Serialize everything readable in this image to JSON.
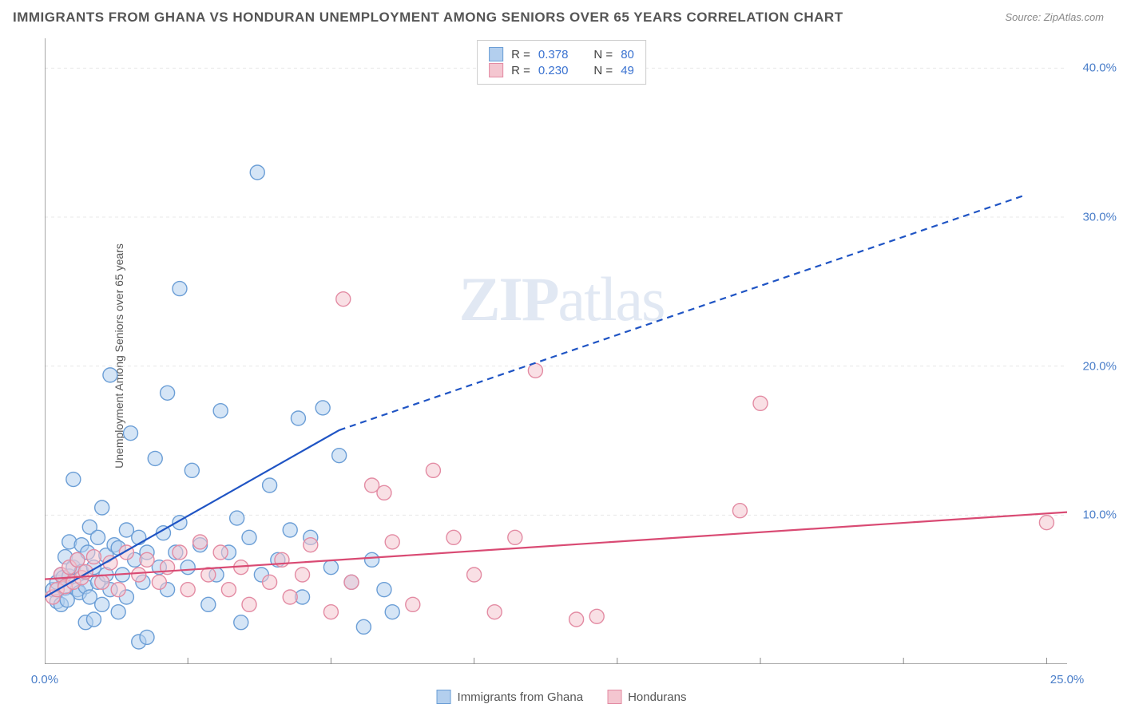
{
  "title": "IMMIGRANTS FROM GHANA VS HONDURAN UNEMPLOYMENT AMONG SENIORS OVER 65 YEARS CORRELATION CHART",
  "source": "Source: ZipAtlas.com",
  "y_axis_label": "Unemployment Among Seniors over 65 years",
  "watermark_bold": "ZIP",
  "watermark_light": "atlas",
  "chart": {
    "type": "scatter",
    "xlim": [
      0,
      25
    ],
    "ylim": [
      0,
      42
    ],
    "x_ticks": [
      {
        "v": 0,
        "label": "0.0%"
      },
      {
        "v": 25,
        "label": "25.0%"
      }
    ],
    "y_ticks": [
      {
        "v": 10,
        "label": "10.0%"
      },
      {
        "v": 20,
        "label": "20.0%"
      },
      {
        "v": 30,
        "label": "30.0%"
      },
      {
        "v": 40,
        "label": "40.0%"
      }
    ],
    "grid_y": [
      10,
      20,
      30,
      40
    ],
    "grid_x": [
      3.5,
      7,
      10.5,
      14,
      17.5,
      21,
      24.5
    ],
    "grid_color": "#e8e8e8",
    "axis_color": "#888888",
    "background": "#ffffff",
    "marker_radius": 9,
    "marker_stroke_width": 1.4,
    "series": [
      {
        "name": "Immigrants from Ghana",
        "fill": "#b3cfee",
        "stroke": "#6b9ed6",
        "fill_opacity": 0.55,
        "R": "0.378",
        "N": "80",
        "trend": {
          "x1": 0,
          "y1": 4.5,
          "x2": 7.2,
          "y2": 15.7,
          "color": "#1f54c4",
          "width": 2.2,
          "dash_from_x": 7.2,
          "dash_to": {
            "x": 24,
            "y": 31.5
          }
        },
        "points": [
          [
            0.2,
            5.0
          ],
          [
            0.3,
            4.2
          ],
          [
            0.3,
            5.5
          ],
          [
            0.4,
            6.0
          ],
          [
            0.4,
            4.0
          ],
          [
            0.45,
            5.8
          ],
          [
            0.5,
            5.1
          ],
          [
            0.5,
            7.2
          ],
          [
            0.55,
            4.3
          ],
          [
            0.6,
            8.2
          ],
          [
            0.6,
            5.9
          ],
          [
            0.7,
            6.5
          ],
          [
            0.7,
            12.4
          ],
          [
            0.8,
            5.0
          ],
          [
            0.8,
            7.0
          ],
          [
            0.85,
            4.8
          ],
          [
            0.9,
            6.2
          ],
          [
            0.9,
            8.0
          ],
          [
            1.0,
            5.2
          ],
          [
            1.0,
            2.8
          ],
          [
            1.05,
            7.5
          ],
          [
            1.1,
            9.2
          ],
          [
            1.1,
            4.5
          ],
          [
            1.2,
            3.0
          ],
          [
            1.2,
            6.5
          ],
          [
            1.3,
            8.5
          ],
          [
            1.3,
            5.5
          ],
          [
            1.4,
            10.5
          ],
          [
            1.4,
            4.0
          ],
          [
            1.5,
            7.3
          ],
          [
            1.5,
            6.0
          ],
          [
            1.6,
            19.4
          ],
          [
            1.6,
            5.0
          ],
          [
            1.7,
            8.0
          ],
          [
            1.8,
            3.5
          ],
          [
            1.8,
            7.8
          ],
          [
            1.9,
            6.0
          ],
          [
            2.0,
            9.0
          ],
          [
            2.0,
            4.5
          ],
          [
            2.1,
            15.5
          ],
          [
            2.2,
            7.0
          ],
          [
            2.3,
            1.5
          ],
          [
            2.3,
            8.5
          ],
          [
            2.4,
            5.5
          ],
          [
            2.5,
            1.8
          ],
          [
            2.5,
            7.5
          ],
          [
            2.7,
            13.8
          ],
          [
            2.8,
            6.5
          ],
          [
            2.9,
            8.8
          ],
          [
            3.0,
            5.0
          ],
          [
            3.0,
            18.2
          ],
          [
            3.2,
            7.5
          ],
          [
            3.3,
            25.2
          ],
          [
            3.3,
            9.5
          ],
          [
            3.5,
            6.5
          ],
          [
            3.6,
            13.0
          ],
          [
            3.8,
            8.0
          ],
          [
            4.2,
            6.0
          ],
          [
            4.3,
            17.0
          ],
          [
            4.5,
            7.5
          ],
          [
            4.7,
            9.8
          ],
          [
            4.8,
            2.8
          ],
          [
            5.0,
            8.5
          ],
          [
            5.2,
            33.0
          ],
          [
            5.3,
            6.0
          ],
          [
            5.5,
            12.0
          ],
          [
            5.7,
            7.0
          ],
          [
            6.0,
            9.0
          ],
          [
            6.2,
            16.5
          ],
          [
            6.3,
            4.5
          ],
          [
            6.5,
            8.5
          ],
          [
            6.8,
            17.2
          ],
          [
            7.0,
            6.5
          ],
          [
            7.2,
            14.0
          ],
          [
            7.5,
            5.5
          ],
          [
            7.8,
            2.5
          ],
          [
            8.0,
            7.0
          ],
          [
            8.3,
            5.0
          ],
          [
            8.5,
            3.5
          ],
          [
            4.0,
            4.0
          ]
        ]
      },
      {
        "name": "Hondurans",
        "fill": "#f4c6d0",
        "stroke": "#e38ba3",
        "fill_opacity": 0.55,
        "R": "0.230",
        "N": "49",
        "trend": {
          "x1": 0,
          "y1": 5.7,
          "x2": 25,
          "y2": 10.2,
          "color": "#d94a73",
          "width": 2.2
        },
        "points": [
          [
            0.2,
            4.5
          ],
          [
            0.3,
            5.0
          ],
          [
            0.4,
            6.0
          ],
          [
            0.5,
            5.2
          ],
          [
            0.6,
            6.5
          ],
          [
            0.7,
            5.5
          ],
          [
            0.8,
            7.0
          ],
          [
            0.9,
            5.8
          ],
          [
            1.0,
            6.2
          ],
          [
            1.2,
            7.2
          ],
          [
            1.4,
            5.5
          ],
          [
            1.6,
            6.8
          ],
          [
            1.8,
            5.0
          ],
          [
            2.0,
            7.5
          ],
          [
            2.3,
            6.0
          ],
          [
            2.5,
            7.0
          ],
          [
            2.8,
            5.5
          ],
          [
            3.0,
            6.5
          ],
          [
            3.3,
            7.5
          ],
          [
            3.5,
            5.0
          ],
          [
            3.8,
            8.2
          ],
          [
            4.0,
            6.0
          ],
          [
            4.3,
            7.5
          ],
          [
            4.5,
            5.0
          ],
          [
            4.8,
            6.5
          ],
          [
            5.0,
            4.0
          ],
          [
            5.5,
            5.5
          ],
          [
            5.8,
            7.0
          ],
          [
            6.0,
            4.5
          ],
          [
            6.3,
            6.0
          ],
          [
            6.5,
            8.0
          ],
          [
            7.0,
            3.5
          ],
          [
            7.3,
            24.5
          ],
          [
            7.5,
            5.5
          ],
          [
            8.0,
            12.0
          ],
          [
            8.3,
            11.5
          ],
          [
            8.5,
            8.2
          ],
          [
            9.0,
            4.0
          ],
          [
            9.5,
            13.0
          ],
          [
            10.0,
            8.5
          ],
          [
            10.5,
            6.0
          ],
          [
            11.0,
            3.5
          ],
          [
            11.5,
            8.5
          ],
          [
            12.0,
            19.7
          ],
          [
            13.0,
            3.0
          ],
          [
            13.5,
            3.2
          ],
          [
            17.0,
            10.3
          ],
          [
            17.5,
            17.5
          ],
          [
            24.5,
            9.5
          ]
        ]
      }
    ]
  },
  "stats_legend": {
    "r_label": "R =",
    "n_label": "N =",
    "value_color": "#3a72d0"
  },
  "bottom_legend": [
    {
      "label": "Immigrants from Ghana",
      "fill": "#b3cfee",
      "stroke": "#6b9ed6"
    },
    {
      "label": "Hondurans",
      "fill": "#f4c6d0",
      "stroke": "#e38ba3"
    }
  ]
}
